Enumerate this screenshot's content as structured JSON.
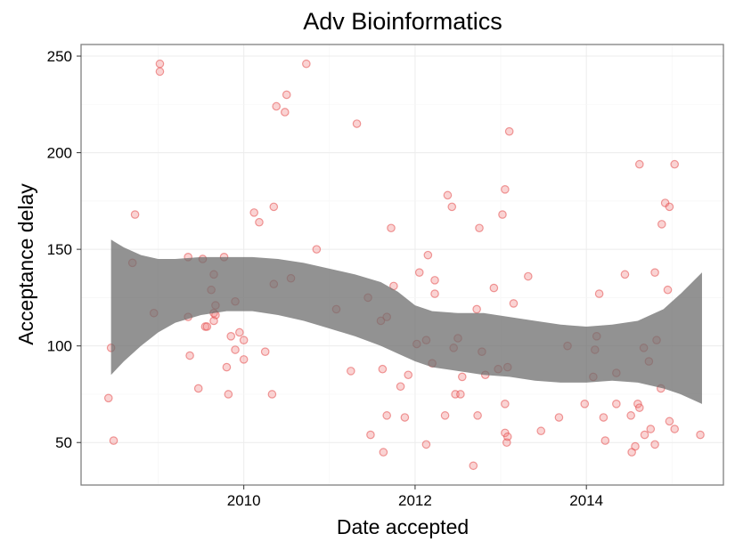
{
  "chart_data": {
    "type": "scatter",
    "title": "Adv Bioinformatics",
    "xlabel": "Date accepted",
    "ylabel": "Acceptance delay",
    "xlim": [
      2008.1,
      2015.6
    ],
    "ylim": [
      28,
      256
    ],
    "x_ticks": [
      2010,
      2012,
      2014
    ],
    "x_tick_labels": [
      "2010",
      "2012",
      "2014"
    ],
    "y_ticks": [
      50,
      100,
      150,
      200,
      250
    ],
    "y_tick_labels": [
      "50",
      "100",
      "150",
      "200",
      "250"
    ],
    "grid": true,
    "legend": "none",
    "point_color": "#f08080",
    "band_color": "#6e6e6e",
    "points": [
      {
        "x": 2008.45,
        "y": 99
      },
      {
        "x": 2008.42,
        "y": 73
      },
      {
        "x": 2008.48,
        "y": 51
      },
      {
        "x": 2008.73,
        "y": 168
      },
      {
        "x": 2008.7,
        "y": 143
      },
      {
        "x": 2008.95,
        "y": 117
      },
      {
        "x": 2009.02,
        "y": 246
      },
      {
        "x": 2009.02,
        "y": 242
      },
      {
        "x": 2009.35,
        "y": 146
      },
      {
        "x": 2009.35,
        "y": 115
      },
      {
        "x": 2009.37,
        "y": 95
      },
      {
        "x": 2009.47,
        "y": 78
      },
      {
        "x": 2009.52,
        "y": 145
      },
      {
        "x": 2009.55,
        "y": 110
      },
      {
        "x": 2009.57,
        "y": 110
      },
      {
        "x": 2009.62,
        "y": 129
      },
      {
        "x": 2009.65,
        "y": 137
      },
      {
        "x": 2009.67,
        "y": 121
      },
      {
        "x": 2009.65,
        "y": 117
      },
      {
        "x": 2009.67,
        "y": 116
      },
      {
        "x": 2009.65,
        "y": 113
      },
      {
        "x": 2009.77,
        "y": 146
      },
      {
        "x": 2009.8,
        "y": 89
      },
      {
        "x": 2009.82,
        "y": 75
      },
      {
        "x": 2009.85,
        "y": 105
      },
      {
        "x": 2009.9,
        "y": 123
      },
      {
        "x": 2009.9,
        "y": 98
      },
      {
        "x": 2009.95,
        "y": 107
      },
      {
        "x": 2010.0,
        "y": 103
      },
      {
        "x": 2010.0,
        "y": 93
      },
      {
        "x": 2010.12,
        "y": 169
      },
      {
        "x": 2010.18,
        "y": 164
      },
      {
        "x": 2010.25,
        "y": 97
      },
      {
        "x": 2010.35,
        "y": 172
      },
      {
        "x": 2010.35,
        "y": 132
      },
      {
        "x": 2010.33,
        "y": 75
      },
      {
        "x": 2010.38,
        "y": 224
      },
      {
        "x": 2010.5,
        "y": 230
      },
      {
        "x": 2010.48,
        "y": 221
      },
      {
        "x": 2010.55,
        "y": 135
      },
      {
        "x": 2010.73,
        "y": 246
      },
      {
        "x": 2010.85,
        "y": 150
      },
      {
        "x": 2011.08,
        "y": 119
      },
      {
        "x": 2011.25,
        "y": 87
      },
      {
        "x": 2011.32,
        "y": 215
      },
      {
        "x": 2011.45,
        "y": 125
      },
      {
        "x": 2011.48,
        "y": 54
      },
      {
        "x": 2011.6,
        "y": 113
      },
      {
        "x": 2011.62,
        "y": 88
      },
      {
        "x": 2011.63,
        "y": 45
      },
      {
        "x": 2011.67,
        "y": 115
      },
      {
        "x": 2011.67,
        "y": 64
      },
      {
        "x": 2011.72,
        "y": 161
      },
      {
        "x": 2011.75,
        "y": 131
      },
      {
        "x": 2011.83,
        "y": 79
      },
      {
        "x": 2011.88,
        "y": 63
      },
      {
        "x": 2011.92,
        "y": 85
      },
      {
        "x": 2012.02,
        "y": 101
      },
      {
        "x": 2012.05,
        "y": 138
      },
      {
        "x": 2012.13,
        "y": 103
      },
      {
        "x": 2012.13,
        "y": 49
      },
      {
        "x": 2012.15,
        "y": 147
      },
      {
        "x": 2012.2,
        "y": 91
      },
      {
        "x": 2012.23,
        "y": 134
      },
      {
        "x": 2012.23,
        "y": 127
      },
      {
        "x": 2012.35,
        "y": 64
      },
      {
        "x": 2012.38,
        "y": 178
      },
      {
        "x": 2012.43,
        "y": 172
      },
      {
        "x": 2012.45,
        "y": 99
      },
      {
        "x": 2012.47,
        "y": 75
      },
      {
        "x": 2012.5,
        "y": 104
      },
      {
        "x": 2012.53,
        "y": 75
      },
      {
        "x": 2012.55,
        "y": 84
      },
      {
        "x": 2012.68,
        "y": 38
      },
      {
        "x": 2012.72,
        "y": 119
      },
      {
        "x": 2012.73,
        "y": 64
      },
      {
        "x": 2012.75,
        "y": 161
      },
      {
        "x": 2012.78,
        "y": 97
      },
      {
        "x": 2012.82,
        "y": 85
      },
      {
        "x": 2012.92,
        "y": 130
      },
      {
        "x": 2012.97,
        "y": 88
      },
      {
        "x": 2013.02,
        "y": 168
      },
      {
        "x": 2013.05,
        "y": 181
      },
      {
        "x": 2013.05,
        "y": 70
      },
      {
        "x": 2013.05,
        "y": 55
      },
      {
        "x": 2013.07,
        "y": 50
      },
      {
        "x": 2013.08,
        "y": 89
      },
      {
        "x": 2013.1,
        "y": 211
      },
      {
        "x": 2013.08,
        "y": 53
      },
      {
        "x": 2013.15,
        "y": 122
      },
      {
        "x": 2013.32,
        "y": 136
      },
      {
        "x": 2013.47,
        "y": 56
      },
      {
        "x": 2013.68,
        "y": 63
      },
      {
        "x": 2013.78,
        "y": 100
      },
      {
        "x": 2013.98,
        "y": 70
      },
      {
        "x": 2014.08,
        "y": 84
      },
      {
        "x": 2014.1,
        "y": 98
      },
      {
        "x": 2014.12,
        "y": 105
      },
      {
        "x": 2014.15,
        "y": 127
      },
      {
        "x": 2014.2,
        "y": 63
      },
      {
        "x": 2014.22,
        "y": 51
      },
      {
        "x": 2014.35,
        "y": 86
      },
      {
        "x": 2014.35,
        "y": 70
      },
      {
        "x": 2014.45,
        "y": 137
      },
      {
        "x": 2014.52,
        "y": 64
      },
      {
        "x": 2014.53,
        "y": 45
      },
      {
        "x": 2014.57,
        "y": 48
      },
      {
        "x": 2014.6,
        "y": 70
      },
      {
        "x": 2014.62,
        "y": 194
      },
      {
        "x": 2014.62,
        "y": 68
      },
      {
        "x": 2014.67,
        "y": 99
      },
      {
        "x": 2014.68,
        "y": 54
      },
      {
        "x": 2014.73,
        "y": 92
      },
      {
        "x": 2014.75,
        "y": 57
      },
      {
        "x": 2014.8,
        "y": 138
      },
      {
        "x": 2014.82,
        "y": 103
      },
      {
        "x": 2014.8,
        "y": 49
      },
      {
        "x": 2014.88,
        "y": 163
      },
      {
        "x": 2014.87,
        "y": 78
      },
      {
        "x": 2014.92,
        "y": 174
      },
      {
        "x": 2014.95,
        "y": 129
      },
      {
        "x": 2014.97,
        "y": 172
      },
      {
        "x": 2014.97,
        "y": 61
      },
      {
        "x": 2015.03,
        "y": 194
      },
      {
        "x": 2015.03,
        "y": 57
      },
      {
        "x": 2015.33,
        "y": 54
      }
    ],
    "smooth_band": [
      {
        "x": 2008.45,
        "lower": 85,
        "upper": 155
      },
      {
        "x": 2008.6,
        "lower": 92,
        "upper": 151
      },
      {
        "x": 2008.8,
        "lower": 100,
        "upper": 147
      },
      {
        "x": 2009.0,
        "lower": 107,
        "upper": 145
      },
      {
        "x": 2009.2,
        "lower": 112,
        "upper": 145
      },
      {
        "x": 2009.5,
        "lower": 116,
        "upper": 146
      },
      {
        "x": 2009.8,
        "lower": 118,
        "upper": 146
      },
      {
        "x": 2010.1,
        "lower": 118,
        "upper": 146
      },
      {
        "x": 2010.4,
        "lower": 116,
        "upper": 145
      },
      {
        "x": 2010.7,
        "lower": 113,
        "upper": 143
      },
      {
        "x": 2011.0,
        "lower": 109,
        "upper": 140
      },
      {
        "x": 2011.3,
        "lower": 105,
        "upper": 137
      },
      {
        "x": 2011.6,
        "lower": 100,
        "upper": 133
      },
      {
        "x": 2011.8,
        "lower": 96,
        "upper": 128
      },
      {
        "x": 2012.0,
        "lower": 92,
        "upper": 121
      },
      {
        "x": 2012.2,
        "lower": 89,
        "upper": 118
      },
      {
        "x": 2012.5,
        "lower": 87,
        "upper": 117
      },
      {
        "x": 2012.8,
        "lower": 85,
        "upper": 117
      },
      {
        "x": 2013.1,
        "lower": 84,
        "upper": 115
      },
      {
        "x": 2013.4,
        "lower": 82,
        "upper": 113
      },
      {
        "x": 2013.7,
        "lower": 81,
        "upper": 111
      },
      {
        "x": 2014.0,
        "lower": 81,
        "upper": 110
      },
      {
        "x": 2014.3,
        "lower": 82,
        "upper": 111
      },
      {
        "x": 2014.6,
        "lower": 81,
        "upper": 113
      },
      {
        "x": 2014.9,
        "lower": 78,
        "upper": 119
      },
      {
        "x": 2015.1,
        "lower": 75,
        "upper": 127
      },
      {
        "x": 2015.35,
        "lower": 70,
        "upper": 138
      }
    ]
  }
}
